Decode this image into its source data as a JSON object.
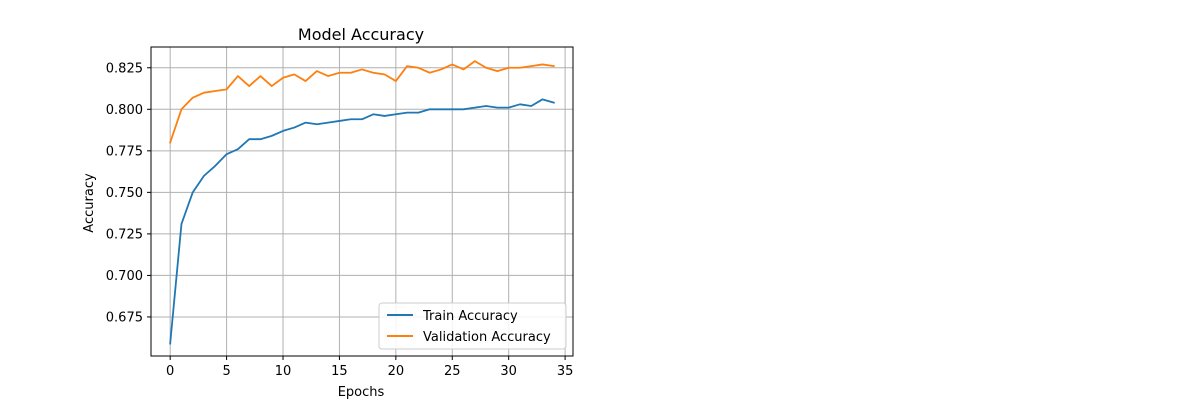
{
  "chart_data": {
    "type": "line",
    "title": "Model Accuracy",
    "xlabel": "Epochs",
    "ylabel": "Accuracy",
    "xlim": [
      -1.7,
      35.7
    ],
    "ylim": [
      0.6515,
      0.8375
    ],
    "xticks": [
      0,
      5,
      10,
      15,
      20,
      25,
      30,
      35
    ],
    "yticks": [
      0.675,
      0.7,
      0.725,
      0.75,
      0.775,
      0.8,
      0.825
    ],
    "ytick_labels": [
      "0.675",
      "0.700",
      "0.725",
      "0.750",
      "0.775",
      "0.800",
      "0.825"
    ],
    "grid": true,
    "legend_position": "lower-right",
    "x": [
      0,
      1,
      2,
      3,
      4,
      5,
      6,
      7,
      8,
      9,
      10,
      11,
      12,
      13,
      14,
      15,
      16,
      17,
      18,
      19,
      20,
      21,
      22,
      23,
      24,
      25,
      26,
      27,
      28,
      29,
      30,
      31,
      32,
      33,
      34
    ],
    "series": [
      {
        "name": "Train Accuracy",
        "color": "#1f77b4",
        "values": [
          0.659,
          0.731,
          0.75,
          0.76,
          0.766,
          0.773,
          0.776,
          0.782,
          0.782,
          0.784,
          0.787,
          0.789,
          0.792,
          0.791,
          0.792,
          0.793,
          0.794,
          0.794,
          0.797,
          0.796,
          0.797,
          0.798,
          0.798,
          0.8,
          0.8,
          0.8,
          0.8,
          0.801,
          0.802,
          0.801,
          0.801,
          0.803,
          0.802,
          0.806,
          0.804
        ]
      },
      {
        "name": "Validation Accuracy",
        "color": "#ff7f0e",
        "values": [
          0.78,
          0.8,
          0.807,
          0.81,
          0.811,
          0.812,
          0.82,
          0.814,
          0.82,
          0.814,
          0.819,
          0.821,
          0.817,
          0.823,
          0.82,
          0.822,
          0.822,
          0.824,
          0.822,
          0.821,
          0.817,
          0.826,
          0.825,
          0.822,
          0.824,
          0.827,
          0.824,
          0.829,
          0.825,
          0.823,
          0.825,
          0.825,
          0.826,
          0.827,
          0.826
        ]
      }
    ]
  }
}
